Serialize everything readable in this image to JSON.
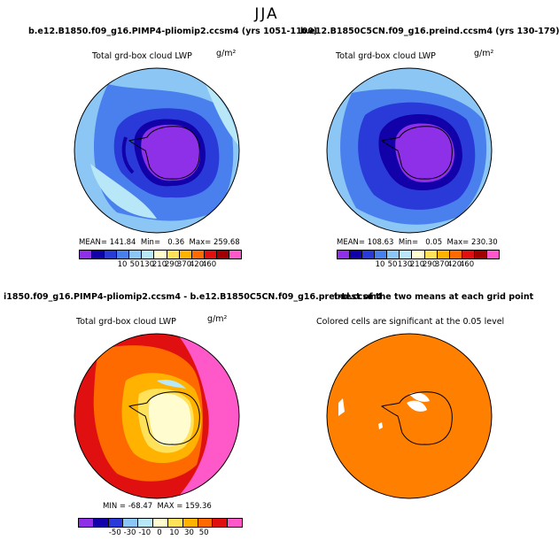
{
  "page": {
    "season": "JJA"
  },
  "chart_data": [
    {
      "type": "polar-map",
      "title": "b.e12.B1850.f09_g16.PIMP4-pliomip2.ccsm4 (yrs 1051-1100)",
      "subtitle": "Total grd-box cloud LWP",
      "units": "g/m²",
      "stats": {
        "mean_label": "MEAN=",
        "mean": "141.84",
        "min_label": "Min=",
        "min": "0.36",
        "max_label": "Max=",
        "max": "259.68"
      },
      "colorbar": {
        "labels": [
          "10",
          "50",
          "130",
          "210",
          "290",
          "370",
          "420",
          "460"
        ],
        "colors": [
          "#8d30e8",
          "#1200a8",
          "#2a3ad8",
          "#4a80ee",
          "#8cc6f5",
          "#b8e8f7",
          "#fffdd0",
          "#ffe25a",
          "#ffb200",
          "#ff6a00",
          "#e01010",
          "#a00000",
          "#ff58c8"
        ]
      }
    },
    {
      "type": "polar-map",
      "title": "b.e12.B1850C5CN.f09_g16.preind.ccsm4 (yrs 130-179)",
      "subtitle": "Total grd-box cloud LWP",
      "units": "g/m²",
      "stats": {
        "mean_label": "MEAN=",
        "mean": "108.63",
        "min_label": "Min=",
        "min": "0.05",
        "max_label": "Max=",
        "max": "230.30"
      },
      "colorbar": {
        "labels": [
          "10",
          "50",
          "130",
          "210",
          "290",
          "370",
          "420",
          "460"
        ],
        "colors": [
          "#8d30e8",
          "#1200a8",
          "#2a3ad8",
          "#4a80ee",
          "#8cc6f5",
          "#b8e8f7",
          "#fffdd0",
          "#ffe25a",
          "#ffb200",
          "#ff6a00",
          "#e01010",
          "#a00000",
          "#ff58c8"
        ]
      }
    },
    {
      "type": "polar-map",
      "title": "i1850.f09_g16.PIMP4-pliomip2.ccsm4 - b.e12.B1850C5CN.f09_g16.preind.ccsm4",
      "subtitle": "Total grd-box cloud LWP",
      "units": "g/m²",
      "stats": {
        "min_label": "MIN =",
        "min": "-68.47",
        "max_label": "MAX =",
        "max": "159.36"
      },
      "colorbar": {
        "labels": [
          "-50",
          "-30",
          "-10",
          "0",
          "10",
          "30",
          "50"
        ],
        "colors": [
          "#8d30e8",
          "#1200a8",
          "#2a3ad8",
          "#8cc6f5",
          "#b8e8f7",
          "#fffdd0",
          "#ffe25a",
          "#ffb200",
          "#ff6a00",
          "#e01010",
          "#ff58c8"
        ]
      }
    },
    {
      "type": "polar-map",
      "title": "t-test of the two means at each grid point",
      "subtitle": "Colored cells are significant at the 0.05 level"
    }
  ]
}
